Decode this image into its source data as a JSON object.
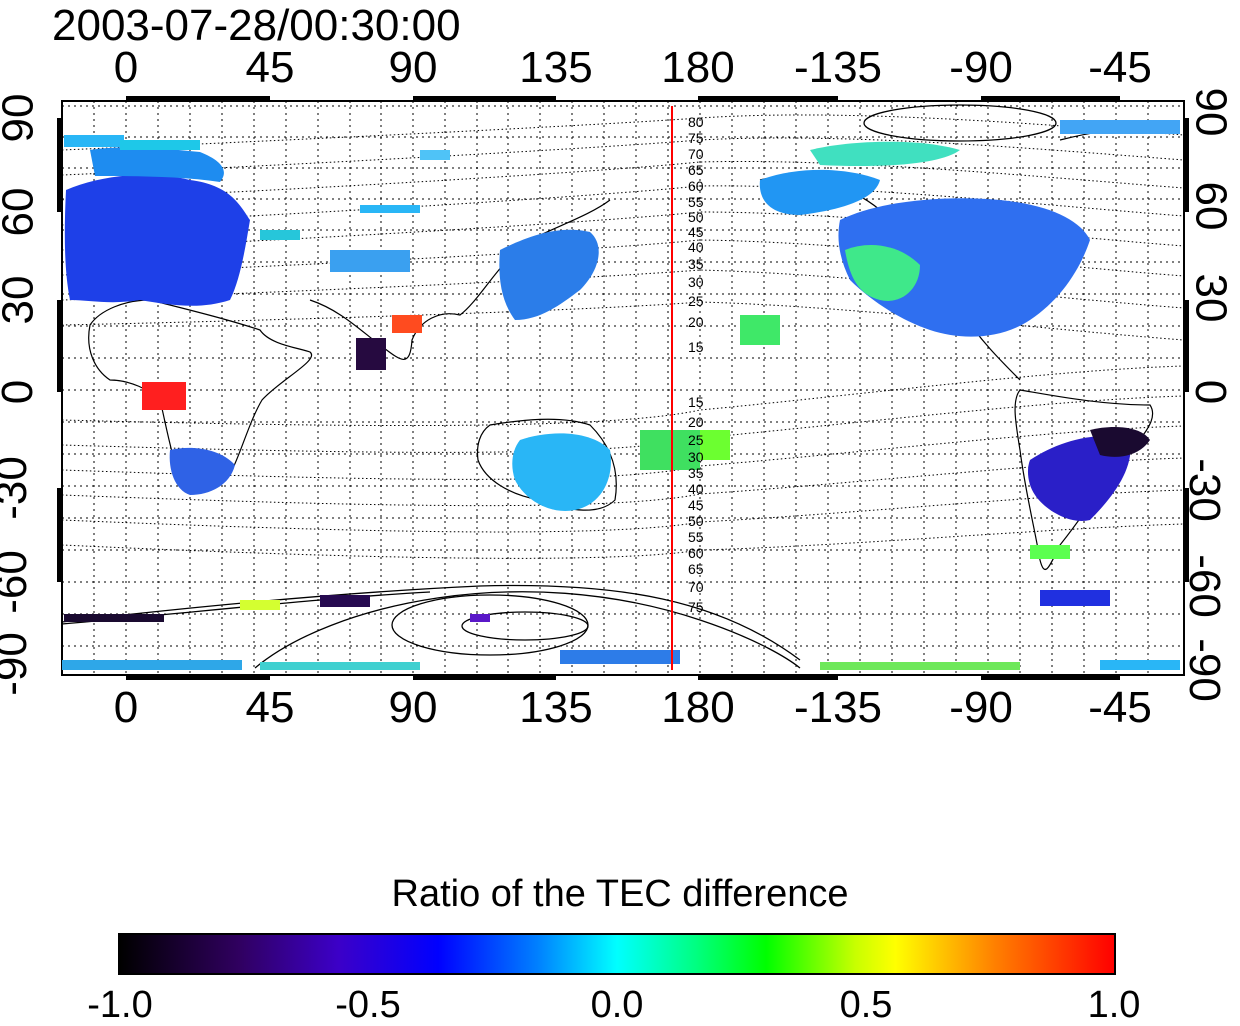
{
  "timestamp": "2003-07-28/00:30:00",
  "top_axis_ticks": [
    "0",
    "45",
    "90",
    "135",
    "180",
    "-135",
    "-90",
    "-45"
  ],
  "bottom_axis_ticks": [
    "0",
    "45",
    "90",
    "135",
    "180",
    "-135",
    "-90",
    "-45"
  ],
  "left_axis_ticks": [
    "90",
    "60",
    "30",
    "0",
    "-30",
    "-60",
    "-90"
  ],
  "right_axis_ticks": [
    "90",
    "60",
    "30",
    "0",
    "-30",
    "-60",
    "-90"
  ],
  "contour_labels_north": [
    "80",
    "75",
    "70",
    "65",
    "60",
    "55",
    "50",
    "45",
    "40",
    "35",
    "30",
    "25",
    "20",
    "15"
  ],
  "contour_labels_south": [
    "15",
    "20",
    "25",
    "30",
    "35",
    "40",
    "45",
    "50",
    "55",
    "60",
    "65",
    "70",
    "75"
  ],
  "colorbar": {
    "title": "Ratio of the TEC difference",
    "tick_labels": [
      "-1.0",
      "-0.5",
      "0.0",
      "0.5",
      "1.0"
    ],
    "range": [
      -1.0,
      1.0
    ]
  },
  "marker_line_color": "#ff0000",
  "marker_longitude": 175
}
